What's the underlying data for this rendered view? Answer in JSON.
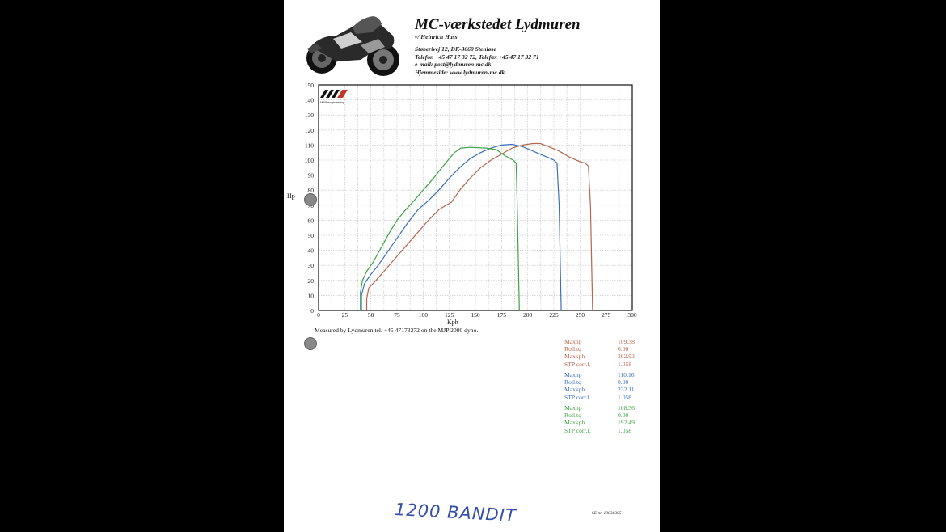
{
  "header": {
    "company": "MC-værkstedet Lydmuren",
    "owner": "v/ Heinrich Hass",
    "address_lines": [
      "Støberivej 12, DK-3660 Stenløse",
      "Telefon +45 47 17 32 72, Telefax +45 47 17 32 71",
      "e-mail: post@lydmuren-mc.dk",
      "Hjemmeside: www.lydmuren-mc.dk"
    ]
  },
  "brand_logo_text": "MJP engineering",
  "chart_data": {
    "type": "line",
    "xlabel": "Kph",
    "ylabel": "Hp",
    "xlim": [
      0,
      300
    ],
    "ylim": [
      0,
      150
    ],
    "x_ticks": [
      0,
      25,
      50,
      75,
      100,
      125,
      150,
      175,
      200,
      225,
      250,
      275,
      300
    ],
    "y_ticks": [
      0,
      10,
      20,
      30,
      40,
      50,
      60,
      70,
      80,
      90,
      100,
      110,
      120,
      130,
      140,
      150
    ],
    "grid": true,
    "series": [
      {
        "color": "#b5664e",
        "points": [
          [
            46,
            0
          ],
          [
            46,
            8
          ],
          [
            48,
            15
          ],
          [
            55,
            20
          ],
          [
            65,
            28
          ],
          [
            75,
            36
          ],
          [
            85,
            44
          ],
          [
            95,
            52
          ],
          [
            105,
            60
          ],
          [
            115,
            67
          ],
          [
            122,
            70
          ],
          [
            127,
            72
          ],
          [
            135,
            80
          ],
          [
            145,
            88
          ],
          [
            155,
            95
          ],
          [
            165,
            100
          ],
          [
            175,
            104
          ],
          [
            185,
            108
          ],
          [
            195,
            110
          ],
          [
            205,
            111
          ],
          [
            212,
            111
          ],
          [
            220,
            109
          ],
          [
            230,
            106
          ],
          [
            240,
            102
          ],
          [
            250,
            99
          ],
          [
            255,
            98
          ],
          [
            258,
            96
          ],
          [
            260,
            70
          ],
          [
            261,
            35
          ],
          [
            262,
            0
          ]
        ]
      },
      {
        "color": "#3a6fbe",
        "points": [
          [
            41,
            0
          ],
          [
            41,
            10
          ],
          [
            44,
            18
          ],
          [
            50,
            24
          ],
          [
            57,
            30
          ],
          [
            65,
            38
          ],
          [
            75,
            48
          ],
          [
            85,
            58
          ],
          [
            95,
            67
          ],
          [
            105,
            73
          ],
          [
            115,
            80
          ],
          [
            125,
            88
          ],
          [
            135,
            95
          ],
          [
            145,
            101
          ],
          [
            155,
            105
          ],
          [
            165,
            108
          ],
          [
            175,
            110
          ],
          [
            185,
            110.5
          ],
          [
            195,
            109
          ],
          [
            205,
            106
          ],
          [
            215,
            103
          ],
          [
            222,
            101
          ],
          [
            225,
            100
          ],
          [
            228,
            98
          ],
          [
            230,
            70
          ],
          [
            231,
            35
          ],
          [
            232,
            0
          ]
        ]
      },
      {
        "color": "#3ea344",
        "points": [
          [
            40,
            0
          ],
          [
            40,
            12
          ],
          [
            42,
            20
          ],
          [
            46,
            26
          ],
          [
            52,
            32
          ],
          [
            60,
            42
          ],
          [
            68,
            52
          ],
          [
            75,
            60
          ],
          [
            82,
            66
          ],
          [
            90,
            72
          ],
          [
            100,
            80
          ],
          [
            110,
            88
          ],
          [
            118,
            95
          ],
          [
            125,
            101
          ],
          [
            130,
            105
          ],
          [
            136,
            108
          ],
          [
            145,
            108.5
          ],
          [
            160,
            108
          ],
          [
            170,
            107
          ],
          [
            178,
            103
          ],
          [
            186,
            100
          ],
          [
            189,
            98
          ],
          [
            190,
            70
          ],
          [
            191,
            35
          ],
          [
            192,
            0
          ]
        ]
      }
    ]
  },
  "measured_text": "Measured by Lydmuren tel. +45 47173272 on the MJP 2000 dyno.",
  "stats": [
    {
      "color": "#b5664e",
      "rows": [
        {
          "k": "Maxhp",
          "v": "109.38"
        },
        {
          "k": "Roll.tq",
          "v": "0.00"
        },
        {
          "k": "Maxkph",
          "v": "262.93"
        },
        {
          "k": "STP corr.f.",
          "v": "1.058"
        }
      ]
    },
    {
      "color": "#3a6fbe",
      "rows": [
        {
          "k": "Maxhp",
          "v": "110.16"
        },
        {
          "k": "Roll.tq",
          "v": "0.00"
        },
        {
          "k": "Maxkph",
          "v": "232.11"
        },
        {
          "k": "STP corr.f.",
          "v": "1.058"
        }
      ]
    },
    {
      "color": "#3ea344",
      "rows": [
        {
          "k": "Maxhp",
          "v": "108.36"
        },
        {
          "k": "Roll.tq",
          "v": "0.00"
        },
        {
          "k": "Maxkph",
          "v": "192.49"
        },
        {
          "k": "STP corr.f.",
          "v": "1.058"
        }
      ]
    }
  ],
  "handwritten_note": "1200 BANDIT",
  "serial": "SE nr. 13838305"
}
